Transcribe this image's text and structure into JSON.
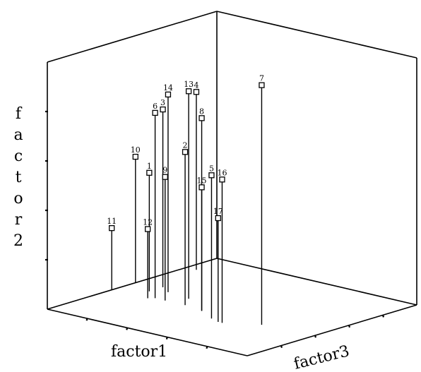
{
  "chart_data": {
    "type": "scatter",
    "title": "",
    "xlabel": "factor1",
    "ylabel": "factor2",
    "zlabel": "factor3",
    "grid": false,
    "points": [
      {
        "label": "1",
        "x": 0.54,
        "y": 0.48,
        "z": 0.12
      },
      {
        "label": "2",
        "x": 0.6,
        "y": 0.62,
        "z": 0.35
      },
      {
        "label": "3",
        "x": 0.46,
        "y": 0.72,
        "z": 0.12
      },
      {
        "label": "4",
        "x": 0.18,
        "y": 0.72,
        "z": 0.05
      },
      {
        "label": "5",
        "x": 0.68,
        "y": 0.58,
        "z": 0.55
      },
      {
        "label": "6",
        "x": 0.6,
        "y": 0.75,
        "z": 0.2
      },
      {
        "label": "7",
        "x": 0.62,
        "y": 0.97,
        "z": 0.75
      },
      {
        "label": "8",
        "x": 0.62,
        "y": 0.78,
        "z": 0.45
      },
      {
        "label": "9",
        "x": 0.6,
        "y": 0.5,
        "z": 0.25
      },
      {
        "label": "10",
        "x": 0.48,
        "y": 0.51,
        "z": 0.0
      },
      {
        "label": "11",
        "x": 0.62,
        "y": 0.25,
        "z": 0.0
      },
      {
        "label": "12",
        "x": 0.62,
        "y": 0.28,
        "z": 0.18
      },
      {
        "label": "13",
        "x": 0.52,
        "y": 0.84,
        "z": 0.3
      },
      {
        "label": "14",
        "x": 0.5,
        "y": 0.8,
        "z": 0.18
      },
      {
        "label": "15",
        "x": 0.62,
        "y": 0.5,
        "z": 0.45
      },
      {
        "label": "16",
        "x": 0.7,
        "y": 0.58,
        "z": 0.62
      },
      {
        "label": "17",
        "x": 0.7,
        "y": 0.42,
        "z": 0.6
      }
    ]
  }
}
